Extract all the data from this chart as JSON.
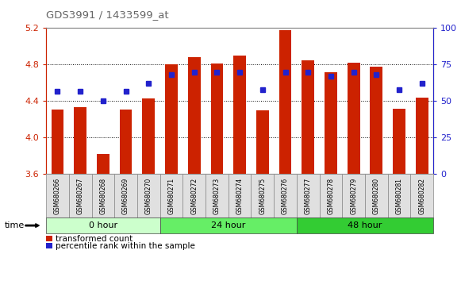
{
  "title": "GDS3991 / 1433599_at",
  "samples": [
    "GSM680266",
    "GSM680267",
    "GSM680268",
    "GSM680269",
    "GSM680270",
    "GSM680271",
    "GSM680272",
    "GSM680273",
    "GSM680274",
    "GSM680275",
    "GSM680276",
    "GSM680277",
    "GSM680278",
    "GSM680279",
    "GSM680280",
    "GSM680281",
    "GSM680282"
  ],
  "red_values": [
    4.31,
    4.33,
    3.82,
    4.31,
    4.43,
    4.8,
    4.88,
    4.81,
    4.9,
    4.3,
    5.18,
    4.85,
    4.72,
    4.82,
    4.78,
    4.32,
    4.44
  ],
  "blue_values": [
    57,
    57,
    50,
    57,
    62,
    68,
    70,
    70,
    70,
    58,
    70,
    70,
    67,
    70,
    68,
    58,
    62
  ],
  "ymin": 3.6,
  "ymax": 5.2,
  "yticks_left": [
    3.6,
    4.0,
    4.4,
    4.8,
    5.2
  ],
  "yticks_right": [
    0,
    25,
    50,
    75,
    100
  ],
  "groups": [
    {
      "label": "0 hour",
      "start": 0,
      "end": 5,
      "color": "#ccffcc"
    },
    {
      "label": "24 hour",
      "start": 5,
      "end": 11,
      "color": "#66ee66"
    },
    {
      "label": "48 hour",
      "start": 11,
      "end": 17,
      "color": "#33cc33"
    }
  ],
  "bar_color": "#cc2200",
  "blue_color": "#2222cc",
  "base": 3.6,
  "plot_bg_color": "#ffffff",
  "title_color": "#666666",
  "bar_width": 0.55,
  "legend_labels": [
    "transformed count",
    "percentile rank within the sample"
  ]
}
